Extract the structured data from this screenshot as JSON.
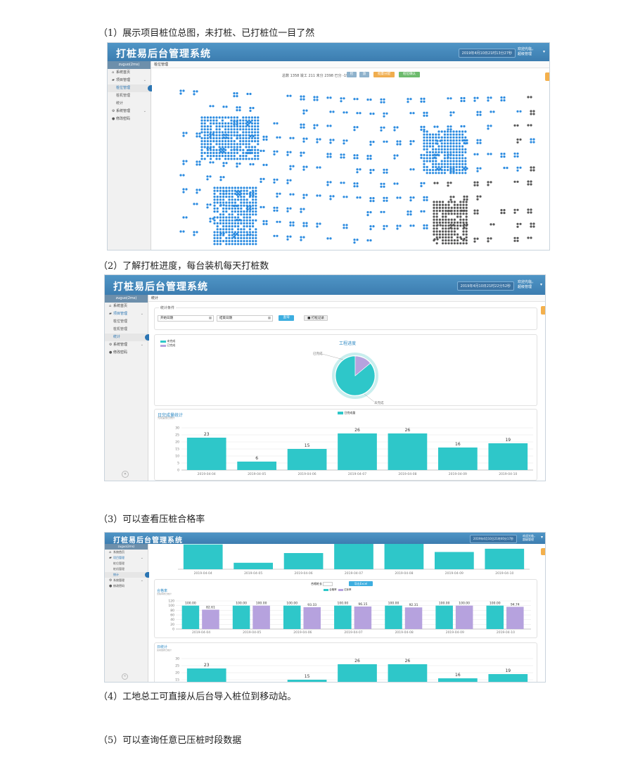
{
  "captions": {
    "c1": "（1）展示项目桩位总图，未打桩、已打桩位一目了然",
    "c2": "（2）了解打桩进度，每台装机每天打桩数",
    "c3": "（3）可以查看压桩合格率",
    "c4": "（4）工地总工可直接从后台导入桩位到移动站。",
    "c5": "（5）可以查询任意已压桩时段数据"
  },
  "app": {
    "title": "打桩易后台管理系统",
    "datetime1": "2019年4月10日21时13分27秒",
    "datetime2": "2019年4月10日21时22分52秒",
    "datetime3": "2019年4月10日21时40分17秒",
    "user_line1": "欢迎光临，",
    "user_line2": "超级管理",
    "sidebar_user": "zuguo(2ms)",
    "menu": {
      "home": "系统首页",
      "project": "项目管理",
      "pile_mgmt": "桩位管理",
      "rig_mgmt": "桩机管理",
      "stats": "统计",
      "system": "系统管理",
      "password": "修改密码"
    },
    "collapse": "«"
  },
  "shot1": {
    "breadcrumb": "桩位管理",
    "summary": "总数 1358 竣工 211 未分 2398 已分 -1940",
    "btn_search": "检",
    "btn_zoom": "放",
    "btn_batch": "批量分配",
    "btn_pile": "桩位确认",
    "colors": {
      "unpiled": "#2b8be0",
      "piled": "#555555"
    }
  },
  "shot2": {
    "breadcrumb": "统计",
    "filter_title": "统计条件",
    "start_label": "开始日期",
    "end_label": "结束日期",
    "btn_query": "查询",
    "btn_export": "打桩记录",
    "pie_title": "工程进度",
    "pie_legend_done": "未完成",
    "pie_legend_undone": "已完成",
    "pie_label_a": "已完成",
    "pie_label_b": "未完成",
    "bar_title": "日完成量统计",
    "bar_subtitle": "完成量按日统计",
    "bar_legend": "日完成量"
  },
  "shot3": {
    "btn_export": "导出Excel",
    "filter_label": "合格桩长",
    "rate_title": "合格率",
    "rate_subtitle": "合格率按日统计",
    "legend_a": "合格率",
    "legend_b": "达标率",
    "daily_title": "日统计",
    "daily_subtitle": "完成量按日统计"
  },
  "chart_data": [
    {
      "type": "pie",
      "title": "工程进度",
      "labels": [
        "未完成",
        "已完成"
      ],
      "values": [
        86,
        14
      ]
    },
    {
      "type": "bar",
      "title": "日完成量统计",
      "categories": [
        "2019-04-04",
        "2019-04-05",
        "2019-04-06",
        "2019-04-07",
        "2019-04-08",
        "2019-04-09",
        "2019-04-10"
      ],
      "series": [
        {
          "name": "日完成量",
          "values": [
            23,
            6,
            15,
            26,
            26,
            16,
            19
          ]
        }
      ],
      "ylim": [
        0,
        30
      ],
      "yticks": [
        0,
        5,
        10,
        15,
        20,
        25,
        30
      ]
    },
    {
      "type": "bar",
      "title": "合格率",
      "categories": [
        "2019-04-04",
        "2019-04-05",
        "2019-04-06",
        "2019-04-07",
        "2019-04-08",
        "2019-04-09",
        "2019-04-10"
      ],
      "series": [
        {
          "name": "合格率",
          "values": [
            100.0,
            100.0,
            100.0,
            100.0,
            100.0,
            100.0,
            100.0
          ]
        },
        {
          "name": "达标率",
          "values": [
            82.61,
            100.0,
            93.33,
            96.15,
            92.31,
            100.0,
            94.74
          ]
        }
      ],
      "labels_a": [
        "100.00",
        "100.00",
        "100.00",
        "100.00",
        "100.00",
        "100.00",
        "100.00"
      ],
      "labels_b": [
        "82.61",
        "100.00",
        "93.33",
        "96.15",
        "92.31",
        "100.00",
        "94.74"
      ],
      "ylim": [
        0,
        120
      ],
      "yticks": [
        0,
        20,
        40,
        60,
        80,
        100,
        120
      ]
    }
  ]
}
